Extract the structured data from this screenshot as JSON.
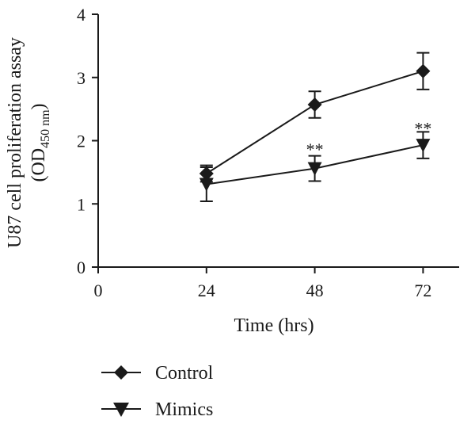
{
  "chart_data": {
    "type": "line",
    "xlabel": "Time (hrs)",
    "ylabel_line1": "U87 cell proliferation assay",
    "ylabel_line2_prefix": "(OD",
    "ylabel_line2_sub": "450 nm",
    "ylabel_line2_suffix": ")",
    "xlim": [
      0,
      80
    ],
    "ylim": [
      0,
      4
    ],
    "xticks": [
      0,
      24,
      48,
      72
    ],
    "yticks": [
      0,
      1,
      2,
      3,
      4
    ],
    "x": [
      24,
      48,
      72
    ],
    "series": [
      {
        "name": "Control",
        "marker": "diamond",
        "values": [
          1.48,
          2.57,
          3.1
        ],
        "errors": [
          0.13,
          0.21,
          0.29
        ]
      },
      {
        "name": "Mimics",
        "marker": "triangle-down",
        "values": [
          1.31,
          1.56,
          1.93
        ],
        "errors": [
          0.27,
          0.2,
          0.21
        ]
      }
    ],
    "annotations": [
      {
        "x": 48,
        "y": 1.92,
        "text": "**"
      },
      {
        "x": 72,
        "y": 2.25,
        "text": "**"
      }
    ],
    "grid": false,
    "legend_position": "bottom-left"
  },
  "colors": {
    "line": "#1a1a1a",
    "background": "#ffffff"
  }
}
